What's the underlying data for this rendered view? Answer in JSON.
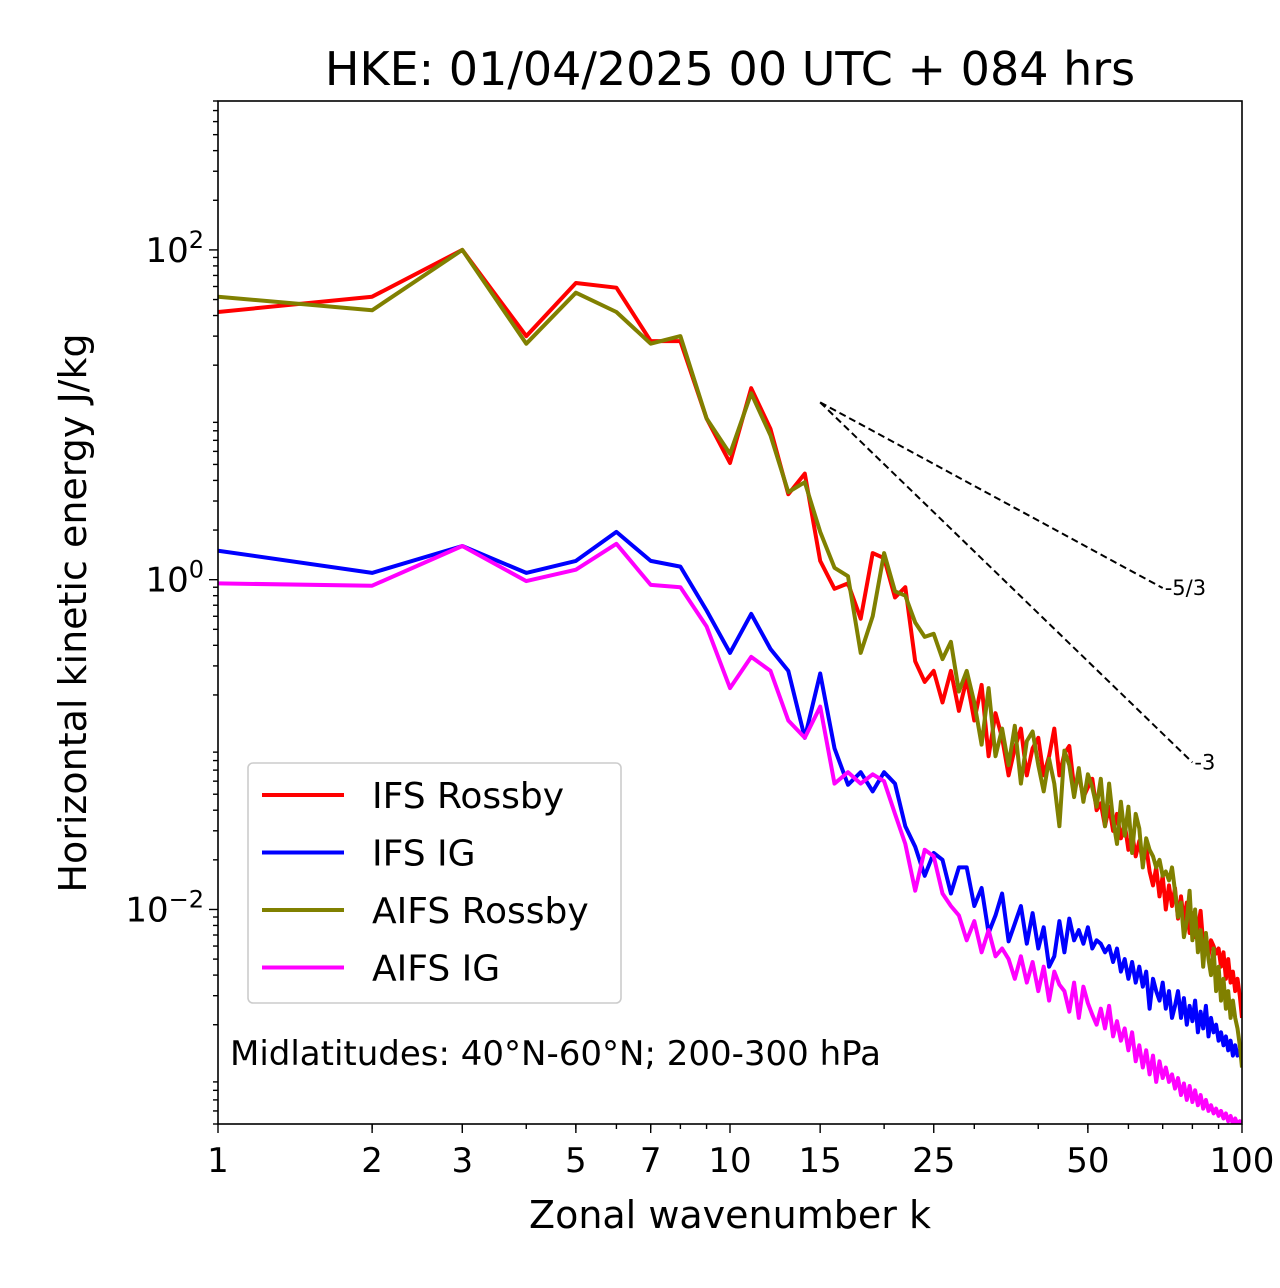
{
  "chart_data": {
    "type": "line",
    "title": "HKE: 01/04/2025 00 UTC + 084 hrs",
    "xlabel": "Zonal wavenumber k",
    "ylabel": "Horizontal kinetic energy J/kg",
    "x_scale": "log",
    "y_scale": "log",
    "xlim": [
      1,
      100
    ],
    "ylim": [
      0.0005,
      800
    ],
    "x_ticks": [
      {
        "value": 1,
        "label": "1"
      },
      {
        "value": 2,
        "label": "2"
      },
      {
        "value": 3,
        "label": "3"
      },
      {
        "value": 5,
        "label": "5"
      },
      {
        "value": 7,
        "label": "7"
      },
      {
        "value": 10,
        "label": "10"
      },
      {
        "value": 15,
        "label": "15"
      },
      {
        "value": 25,
        "label": "25"
      },
      {
        "value": 50,
        "label": "50"
      },
      {
        "value": 100,
        "label": "100"
      }
    ],
    "y_ticks": [
      {
        "value": 100,
        "base": "10",
        "exp": "2"
      },
      {
        "value": 1,
        "base": "10",
        "exp": "0"
      },
      {
        "value": 0.01,
        "base": "10",
        "exp": "−2"
      }
    ],
    "annotation": "Midlatitudes: 40°N-60°N; 200-300 hPa",
    "legend_position": "lower-left",
    "reference_slopes": [
      {
        "label": "-5/3",
        "x": [
          15,
          70
        ],
        "y": [
          11.9,
          0.89
        ]
      },
      {
        "label": "-3",
        "x": [
          15,
          80
        ],
        "y": [
          11.9,
          0.078
        ]
      }
    ],
    "series": [
      {
        "name": "IFS Rossby",
        "color": "#ff0000",
        "x": [
          1,
          2,
          3,
          4,
          5,
          6,
          7,
          8,
          9,
          10,
          11,
          12,
          13,
          14,
          15,
          16,
          17,
          18,
          19,
          20,
          21,
          22,
          23,
          24,
          25,
          26,
          27,
          28,
          29,
          30,
          31,
          32,
          33,
          34,
          35,
          36,
          37,
          38,
          39,
          40,
          41,
          42,
          43,
          44,
          45,
          46,
          47,
          48,
          49,
          50,
          51,
          52,
          53,
          54,
          55,
          56,
          57,
          58,
          59,
          60,
          61,
          62,
          63,
          64,
          65,
          66,
          67,
          68,
          69,
          70,
          71,
          72,
          73,
          74,
          75,
          76,
          77,
          78,
          79,
          80,
          81,
          82,
          83,
          84,
          85,
          86,
          87,
          88,
          89,
          90,
          91,
          92,
          93,
          94,
          95,
          96,
          97,
          98,
          99,
          100
        ],
        "y": [
          42,
          52,
          100,
          30,
          63,
          59,
          28,
          28,
          9.5,
          5.1,
          14.5,
          8.2,
          3.3,
          4.4,
          1.3,
          0.88,
          0.95,
          0.58,
          1.45,
          1.35,
          0.78,
          0.9,
          0.32,
          0.24,
          0.28,
          0.18,
          0.28,
          0.16,
          0.25,
          0.14,
          0.23,
          0.085,
          0.155,
          0.11,
          0.065,
          0.095,
          0.125,
          0.065,
          0.095,
          0.11,
          0.065,
          0.085,
          0.125,
          0.065,
          0.088,
          0.098,
          0.055,
          0.065,
          0.048,
          0.055,
          0.062,
          0.04,
          0.044,
          0.032,
          0.042,
          0.03,
          0.038,
          0.027,
          0.033,
          0.023,
          0.029,
          0.021,
          0.026,
          0.019,
          0.024,
          0.017,
          0.014,
          0.018,
          0.012,
          0.016,
          0.01,
          0.014,
          0.0105,
          0.0135,
          0.0088,
          0.012,
          0.0085,
          0.011,
          0.0072,
          0.0095,
          0.0068,
          0.0078,
          0.0098,
          0.0062,
          0.007,
          0.0052,
          0.0065,
          0.006,
          0.0054,
          0.0058,
          0.0045,
          0.0055,
          0.0038,
          0.005,
          0.0036,
          0.0042,
          0.0032,
          0.0038,
          0.003,
          0.0022
        ]
      },
      {
        "name": "IFS IG",
        "color": "#0000ff",
        "x": [
          1,
          2,
          3,
          4,
          5,
          6,
          7,
          8,
          9,
          10,
          11,
          12,
          13,
          14,
          15,
          16,
          17,
          18,
          19,
          20,
          21,
          22,
          23,
          24,
          25,
          26,
          27,
          28,
          29,
          30,
          31,
          32,
          33,
          34,
          35,
          36,
          37,
          38,
          39,
          40,
          41,
          42,
          43,
          44,
          45,
          46,
          47,
          48,
          49,
          50,
          51,
          52,
          53,
          54,
          55,
          56,
          57,
          58,
          59,
          60,
          61,
          62,
          63,
          64,
          65,
          66,
          67,
          68,
          69,
          70,
          71,
          72,
          73,
          74,
          75,
          76,
          77,
          78,
          79,
          80,
          81,
          82,
          83,
          84,
          85,
          86,
          87,
          88,
          89,
          90,
          91,
          92,
          93,
          94,
          95,
          96,
          97,
          98,
          99,
          100
        ],
        "y": [
          1.5,
          1.1,
          1.6,
          1.1,
          1.3,
          1.95,
          1.3,
          1.2,
          0.65,
          0.36,
          0.62,
          0.38,
          0.28,
          0.11,
          0.27,
          0.095,
          0.057,
          0.068,
          0.052,
          0.068,
          0.058,
          0.032,
          0.024,
          0.016,
          0.022,
          0.02,
          0.0125,
          0.018,
          0.018,
          0.0105,
          0.0135,
          0.0072,
          0.0092,
          0.0125,
          0.0064,
          0.0082,
          0.0105,
          0.0062,
          0.0095,
          0.0058,
          0.0078,
          0.0045,
          0.0052,
          0.0085,
          0.0055,
          0.0088,
          0.0065,
          0.0075,
          0.0062,
          0.0078,
          0.0058,
          0.0065,
          0.0062,
          0.0055,
          0.006,
          0.0048,
          0.0058,
          0.0042,
          0.005,
          0.0038,
          0.0048,
          0.0036,
          0.0045,
          0.0034,
          0.0042,
          0.0025,
          0.0038,
          0.0032,
          0.0028,
          0.0036,
          0.0025,
          0.0032,
          0.0022,
          0.0026,
          0.0032,
          0.0022,
          0.0029,
          0.002,
          0.0026,
          0.0021,
          0.0028,
          0.0018,
          0.0024,
          0.0019,
          0.0026,
          0.0017,
          0.0022,
          0.0018,
          0.002,
          0.0016,
          0.0018,
          0.0015,
          0.0017,
          0.0014,
          0.0016,
          0.0013,
          0.0015,
          0.0013,
          0.0014,
          0.0012
        ]
      },
      {
        "name": "AIFS Rossby",
        "color": "#808000",
        "x": [
          1,
          2,
          3,
          4,
          5,
          6,
          7,
          8,
          9,
          10,
          11,
          12,
          13,
          14,
          15,
          16,
          17,
          18,
          19,
          20,
          21,
          22,
          23,
          24,
          25,
          26,
          27,
          28,
          29,
          30,
          31,
          32,
          33,
          34,
          35,
          36,
          37,
          38,
          39,
          40,
          41,
          42,
          43,
          44,
          45,
          46,
          47,
          48,
          49,
          50,
          51,
          52,
          53,
          54,
          55,
          56,
          57,
          58,
          59,
          60,
          61,
          62,
          63,
          64,
          65,
          66,
          67,
          68,
          69,
          70,
          71,
          72,
          73,
          74,
          75,
          76,
          77,
          78,
          79,
          80,
          81,
          82,
          83,
          84,
          85,
          86,
          87,
          88,
          89,
          90,
          91,
          92,
          93,
          94,
          95,
          96,
          97,
          98,
          99,
          100
        ],
        "y": [
          52,
          43,
          100,
          27,
          55,
          42,
          27,
          30,
          9.5,
          5.8,
          13.5,
          7.5,
          3.4,
          3.9,
          1.95,
          1.18,
          1.05,
          0.36,
          0.6,
          1.45,
          0.85,
          0.8,
          0.55,
          0.45,
          0.47,
          0.33,
          0.42,
          0.21,
          0.28,
          0.18,
          0.1,
          0.22,
          0.085,
          0.125,
          0.075,
          0.13,
          0.058,
          0.105,
          0.12,
          0.075,
          0.052,
          0.082,
          0.058,
          0.032,
          0.092,
          0.075,
          0.048,
          0.072,
          0.045,
          0.066,
          0.055,
          0.042,
          0.062,
          0.032,
          0.058,
          0.035,
          0.025,
          0.045,
          0.028,
          0.042,
          0.022,
          0.038,
          0.031,
          0.018,
          0.027,
          0.023,
          0.021,
          0.018,
          0.02,
          0.016,
          0.017,
          0.015,
          0.018,
          0.013,
          0.009,
          0.011,
          0.0068,
          0.0085,
          0.013,
          0.0065,
          0.01,
          0.0055,
          0.0075,
          0.0045,
          0.0072,
          0.005,
          0.004,
          0.0058,
          0.0032,
          0.0045,
          0.0028,
          0.0038,
          0.0025,
          0.0032,
          0.0022,
          0.0028,
          0.0022,
          0.0019,
          0.0015,
          0.0011
        ]
      },
      {
        "name": "AIFS IG",
        "color": "#ff00ff",
        "x": [
          1,
          2,
          3,
          4,
          5,
          6,
          7,
          8,
          9,
          10,
          11,
          12,
          13,
          14,
          15,
          16,
          17,
          18,
          19,
          20,
          21,
          22,
          23,
          24,
          25,
          26,
          27,
          28,
          29,
          30,
          31,
          32,
          33,
          34,
          35,
          36,
          37,
          38,
          39,
          40,
          41,
          42,
          43,
          44,
          45,
          46,
          47,
          48,
          49,
          50,
          51,
          52,
          53,
          54,
          55,
          56,
          57,
          58,
          59,
          60,
          61,
          62,
          63,
          64,
          65,
          66,
          67,
          68,
          69,
          70,
          71,
          72,
          73,
          74,
          75,
          76,
          77,
          78,
          79,
          80,
          81,
          82,
          83,
          84,
          85,
          86,
          87,
          88,
          89,
          90,
          91,
          92,
          93,
          94,
          95,
          96,
          97,
          98,
          99,
          100
        ],
        "y": [
          0.95,
          0.92,
          1.6,
          0.98,
          1.15,
          1.65,
          0.93,
          0.9,
          0.52,
          0.22,
          0.34,
          0.28,
          0.14,
          0.11,
          0.17,
          0.058,
          0.068,
          0.058,
          0.066,
          0.06,
          0.038,
          0.025,
          0.013,
          0.023,
          0.021,
          0.0125,
          0.0105,
          0.0092,
          0.0065,
          0.0085,
          0.0055,
          0.0075,
          0.0052,
          0.0058,
          0.005,
          0.0038,
          0.0052,
          0.0036,
          0.0048,
          0.0032,
          0.0045,
          0.0028,
          0.0042,
          0.0035,
          0.0032,
          0.0024,
          0.0036,
          0.0022,
          0.0034,
          0.0027,
          0.0023,
          0.002,
          0.0025,
          0.0019,
          0.0026,
          0.0017,
          0.0021,
          0.0016,
          0.0019,
          0.0014,
          0.0018,
          0.0012,
          0.0015,
          0.0011,
          0.0014,
          0.001,
          0.0013,
          0.0009,
          0.0012,
          0.00095,
          0.0011,
          0.0009,
          0.001,
          0.00082,
          0.00095,
          0.00075,
          0.00088,
          0.0007,
          0.00085,
          0.00068,
          0.0008,
          0.00065,
          0.00075,
          0.00062,
          0.0007,
          0.0006,
          0.00065,
          0.00058,
          0.00062,
          0.00056,
          0.0006,
          0.00054,
          0.00058,
          0.00052,
          0.00056,
          0.0005,
          0.00054,
          0.0005,
          0.00052,
          0.0005
        ]
      }
    ]
  }
}
